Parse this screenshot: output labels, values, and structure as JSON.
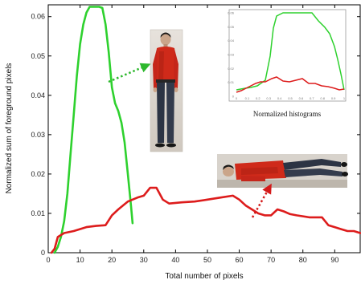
{
  "chart_data": {
    "type": "line",
    "xlabel": "Total number of pixels",
    "ylabel": "Normalized sum of foreground pixels",
    "xlim": [
      0,
      98
    ],
    "ylim": [
      0,
      0.063
    ],
    "x_ticks": [
      "0",
      "10",
      "20",
      "30",
      "40",
      "50",
      "60",
      "70",
      "80",
      "90"
    ],
    "y_ticks": [
      "0",
      "0.01",
      "0.02",
      "0.03",
      "0.04",
      "0.05",
      "0.06"
    ],
    "grid": false,
    "series": [
      {
        "color": "#2ed12e",
        "points": [
          [
            2,
            0.0
          ],
          [
            3,
            0.0015
          ],
          [
            4,
            0.004
          ],
          [
            5,
            0.008
          ],
          [
            6,
            0.015
          ],
          [
            7,
            0.025
          ],
          [
            8,
            0.035
          ],
          [
            9,
            0.045
          ],
          [
            10,
            0.053
          ],
          [
            11,
            0.058
          ],
          [
            12,
            0.061
          ],
          [
            13,
            0.0625
          ],
          [
            14,
            0.0625
          ],
          [
            15,
            0.0625
          ],
          [
            16,
            0.0625
          ],
          [
            17,
            0.0622
          ],
          [
            18,
            0.058
          ],
          [
            19,
            0.051
          ],
          [
            20,
            0.042
          ],
          [
            21,
            0.038
          ],
          [
            22,
            0.036
          ],
          [
            23,
            0.033
          ],
          [
            24,
            0.028
          ],
          [
            25,
            0.02
          ],
          [
            26,
            0.012
          ],
          [
            26.5,
            0.0075
          ]
        ]
      },
      {
        "color": "#dd1c1c",
        "points": [
          [
            1,
            0.0
          ],
          [
            2,
            0.001
          ],
          [
            3,
            0.004
          ],
          [
            5,
            0.005
          ],
          [
            8,
            0.0055
          ],
          [
            12,
            0.0065
          ],
          [
            15,
            0.0068
          ],
          [
            18,
            0.007
          ],
          [
            20,
            0.0095
          ],
          [
            22,
            0.011
          ],
          [
            25,
            0.013
          ],
          [
            28,
            0.014
          ],
          [
            30,
            0.0145
          ],
          [
            32,
            0.0165
          ],
          [
            34,
            0.0165
          ],
          [
            36,
            0.0135
          ],
          [
            38,
            0.0125
          ],
          [
            42,
            0.0128
          ],
          [
            46,
            0.013
          ],
          [
            50,
            0.0135
          ],
          [
            54,
            0.014
          ],
          [
            58,
            0.0145
          ],
          [
            60,
            0.0135
          ],
          [
            62,
            0.012
          ],
          [
            66,
            0.01
          ],
          [
            68,
            0.0095
          ],
          [
            70,
            0.0095
          ],
          [
            72,
            0.011
          ],
          [
            74,
            0.0105
          ],
          [
            76,
            0.0098
          ],
          [
            78,
            0.0095
          ],
          [
            82,
            0.009
          ],
          [
            86,
            0.009
          ],
          [
            88,
            0.007
          ],
          [
            90,
            0.0065
          ],
          [
            92,
            0.006
          ],
          [
            94,
            0.0055
          ],
          [
            96,
            0.0055
          ],
          [
            98,
            0.005
          ]
        ]
      }
    ],
    "annotations": [
      "Normalized histograms"
    ]
  },
  "inset": {
    "caption": "Normalized histograms",
    "y_ticks": [
      "0.06",
      "0.05",
      "0.04",
      "0.03",
      "0.02",
      "0.01",
      "0"
    ],
    "x_ticks": [
      "0",
      "0.1",
      "0.2",
      "0.3",
      "0.4",
      "0.5",
      "0.6",
      "0.7",
      "0.8",
      "0.9",
      "1"
    ]
  },
  "photos": {
    "standing_person": "person-standing-photo",
    "lying_person": "person-lying-photo"
  },
  "colors": {
    "green": "#2ed12e",
    "red": "#dd1c1c",
    "arrow_green": "#2db82d",
    "arrow_red": "#d41a1a"
  }
}
